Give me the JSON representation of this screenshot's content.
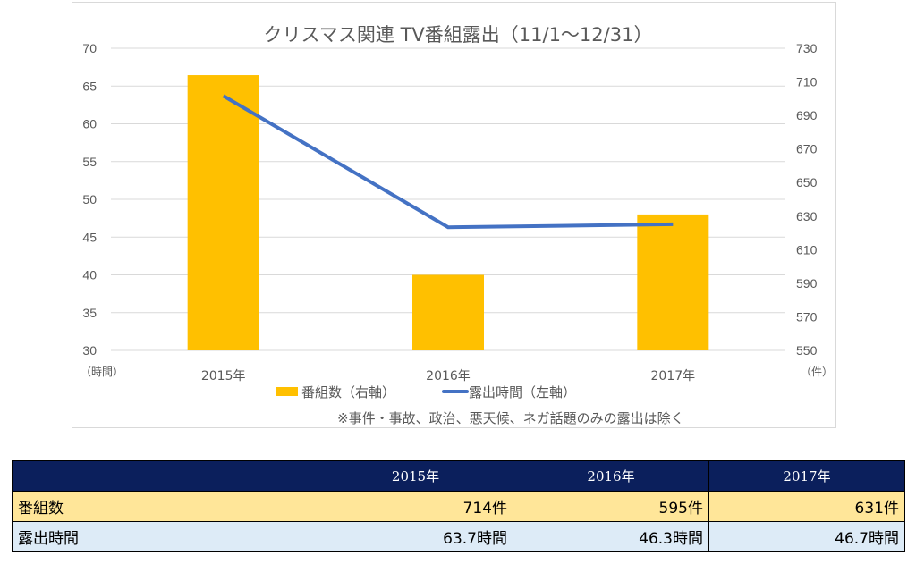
{
  "chart_data": {
    "type": "bar+line",
    "title": "クリスマス関連 TV番組露出（11/1～12/31）",
    "categories": [
      "2015年",
      "2016年",
      "2017年"
    ],
    "series": [
      {
        "name": "番組数（右軸）",
        "type": "bar",
        "axis": "right",
        "values": [
          714,
          595,
          631
        ],
        "color": "#ffc000"
      },
      {
        "name": "露出時間（左軸）",
        "type": "line",
        "axis": "left",
        "values": [
          63.7,
          46.3,
          46.7
        ],
        "color": "#4472c4"
      }
    ],
    "left_axis": {
      "label": "（時間）",
      "ylim": [
        30,
        70
      ],
      "ticks": [
        30,
        35,
        40,
        45,
        50,
        55,
        60,
        65,
        70
      ]
    },
    "right_axis": {
      "label": "（件）",
      "ylim": [
        550,
        730
      ],
      "ticks": [
        550,
        570,
        590,
        610,
        630,
        650,
        670,
        690,
        710,
        730
      ]
    },
    "grid": true,
    "legend": "bottom",
    "note": "※事件・事故、政治、悪天候、ネガ話題のみの露出は除く"
  },
  "table": {
    "headers": [
      "",
      "2015年",
      "2016年",
      "2017年"
    ],
    "rows": [
      {
        "label": "番組数",
        "values": [
          "714件",
          "595件",
          "631件"
        ]
      },
      {
        "label": "露出時間",
        "values": [
          "63.7時間",
          "46.3時間",
          "46.7時間"
        ]
      }
    ]
  }
}
